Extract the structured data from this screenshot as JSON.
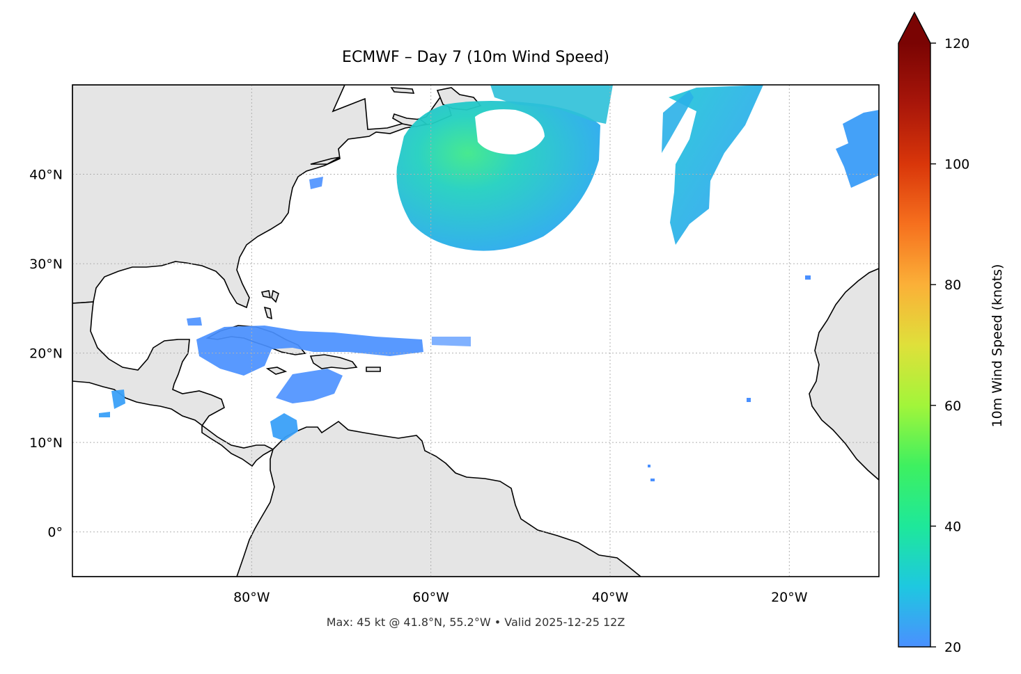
{
  "title": "ECMWF – Day 7 (10m Wind Speed)",
  "footer": "Max: 45 kt @ 41.8°N, 55.2°W • Valid 2025-12-25 12Z",
  "map": {
    "lon_range": [
      -100,
      -10
    ],
    "lat_range": [
      -5,
      50
    ],
    "lon_ticks": [
      {
        "value": -80,
        "label": "80°W"
      },
      {
        "value": -60,
        "label": "60°W"
      },
      {
        "value": -40,
        "label": "40°W"
      },
      {
        "value": -20,
        "label": "20°W"
      }
    ],
    "lat_ticks": [
      {
        "value": 40,
        "label": "40°N"
      },
      {
        "value": 30,
        "label": "30°N"
      },
      {
        "value": 20,
        "label": "20°N"
      },
      {
        "value": 10,
        "label": "10°N"
      },
      {
        "value": 0,
        "label": "0°"
      }
    ],
    "gridlines": "dotted",
    "land_color": "#e5e5e5",
    "coast_color": "#000000",
    "border_color": "#666666",
    "wind_max": {
      "value_kt": 45,
      "lat": 41.8,
      "lon": -55.2
    }
  },
  "colorbar": {
    "label": "10m Wind Speed (knots)",
    "min": 20,
    "max": 120,
    "extend": "max",
    "ticks": [
      {
        "value": 120,
        "label": "120"
      },
      {
        "value": 100,
        "label": "100"
      },
      {
        "value": 80,
        "label": "80"
      },
      {
        "value": 60,
        "label": "60"
      },
      {
        "value": 40,
        "label": "40"
      },
      {
        "value": 20,
        "label": "20"
      }
    ],
    "colors": [
      "#4a90ff",
      "#1ec8e0",
      "#1ee89a",
      "#3ef060",
      "#a2f53a",
      "#dfe03a",
      "#fbb038",
      "#f6701e",
      "#d9360a",
      "#a8160a",
      "#7a0403"
    ]
  }
}
